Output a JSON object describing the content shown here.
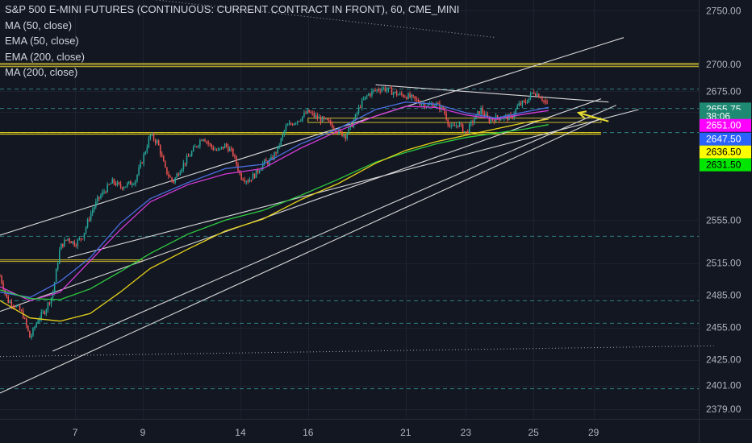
{
  "legend": {
    "title": "S&P 500 E-MINI FUTURES (CONTINUOUS: CURRENT CONTRACT IN FRONT), 60, CME_MINI",
    "lines": [
      "MA (50, close)",
      "EMA (50, close)",
      "EMA (200, close)",
      "MA (200, close)"
    ]
  },
  "colors": {
    "background": "#131722",
    "up": "#26a69a",
    "down": "#ef5350",
    "ma50": "#4a6ee0",
    "ema50": "#d23ad6",
    "ema200": "#2ecc40",
    "ma200": "#e6d21a",
    "trendline": "#d8d8d8",
    "arrow": "#e8e033",
    "dashed": "#2e7f7f"
  },
  "chart_data": {
    "type": "candlestick",
    "title": "S&P 500 E-MINI FUTURES (CONTINUOUS: CURRENT CONTRACT IN FRONT), 60, CME_MINI",
    "ylim": [
      2370,
      2760
    ],
    "y_ticks": [
      2750,
      2700,
      2675,
      2655.75,
      2555,
      2515,
      2485,
      2455,
      2425,
      2401,
      2379
    ],
    "y_tick_labels": [
      "2750.00",
      "2700.00",
      "2675.00",
      "2655.75",
      "2555.00",
      "2515.00",
      "2485.00",
      "2455.00",
      "2425.00",
      "2401.00",
      "2379.00"
    ],
    "x_ticks": [
      {
        "label": "7",
        "bar": 10
      },
      {
        "label": "9",
        "bar": 19
      },
      {
        "label": "14",
        "bar": 32
      },
      {
        "label": "16",
        "bar": 41
      },
      {
        "label": "21",
        "bar": 54
      },
      {
        "label": "23",
        "bar": 62
      },
      {
        "label": "25",
        "bar": 71
      },
      {
        "label": "29",
        "bar": 79
      }
    ],
    "x_range_bars": [
      0,
      93
    ],
    "close_path": [
      [
        0,
        2503
      ],
      [
        1,
        2480
      ],
      [
        2,
        2476
      ],
      [
        3,
        2468
      ],
      [
        4,
        2445
      ],
      [
        5,
        2462
      ],
      [
        6,
        2471
      ],
      [
        7,
        2486
      ],
      [
        8,
        2530
      ],
      [
        9,
        2538
      ],
      [
        10,
        2533
      ],
      [
        11,
        2540
      ],
      [
        12,
        2560
      ],
      [
        13,
        2574
      ],
      [
        14,
        2583
      ],
      [
        15,
        2591
      ],
      [
        16,
        2586
      ],
      [
        17,
        2588
      ],
      [
        18,
        2592
      ],
      [
        19,
        2612
      ],
      [
        20,
        2634
      ],
      [
        21,
        2627
      ],
      [
        22,
        2602
      ],
      [
        23,
        2590
      ],
      [
        24,
        2603
      ],
      [
        25,
        2613
      ],
      [
        26,
        2623
      ],
      [
        27,
        2633
      ],
      [
        28,
        2624
      ],
      [
        29,
        2619
      ],
      [
        30,
        2625
      ],
      [
        31,
        2617
      ],
      [
        32,
        2596
      ],
      [
        33,
        2592
      ],
      [
        34,
        2598
      ],
      [
        35,
        2608
      ],
      [
        36,
        2610
      ],
      [
        37,
        2622
      ],
      [
        38,
        2641
      ],
      [
        39,
        2646
      ],
      [
        40,
        2650
      ],
      [
        41,
        2656
      ],
      [
        42,
        2651
      ],
      [
        43,
        2648
      ],
      [
        44,
        2645
      ],
      [
        45,
        2637
      ],
      [
        46,
        2634
      ],
      [
        47,
        2646
      ],
      [
        48,
        2663
      ],
      [
        49,
        2672
      ],
      [
        50,
        2676
      ],
      [
        51,
        2678
      ],
      [
        52,
        2675
      ],
      [
        53,
        2672
      ],
      [
        54,
        2671
      ],
      [
        55,
        2668
      ],
      [
        56,
        2664
      ],
      [
        57,
        2662
      ],
      [
        58,
        2663
      ],
      [
        59,
        2658
      ],
      [
        60,
        2640
      ],
      [
        61,
        2645
      ],
      [
        62,
        2636
      ],
      [
        63,
        2648
      ],
      [
        64,
        2658
      ],
      [
        65,
        2648
      ],
      [
        66,
        2650
      ],
      [
        67,
        2651
      ],
      [
        68,
        2650
      ],
      [
        69,
        2662
      ],
      [
        70,
        2665
      ],
      [
        71,
        2675
      ],
      [
        72,
        2670
      ],
      [
        73,
        2660
      ]
    ],
    "series": [
      {
        "name": "MA (50, close)",
        "color": "#4a6ee0",
        "values": [
          [
            0,
            2488
          ],
          [
            4,
            2483
          ],
          [
            8,
            2498
          ],
          [
            12,
            2520
          ],
          [
            16,
            2552
          ],
          [
            20,
            2575
          ],
          [
            25,
            2590
          ],
          [
            30,
            2603
          ],
          [
            35,
            2607
          ],
          [
            40,
            2626
          ],
          [
            45,
            2640
          ],
          [
            50,
            2658
          ],
          [
            54,
            2665
          ],
          [
            58,
            2663
          ],
          [
            62,
            2655
          ],
          [
            66,
            2650
          ],
          [
            70,
            2656
          ],
          [
            73,
            2660
          ]
        ]
      },
      {
        "name": "EMA (50, close)",
        "color": "#d23ad6",
        "values": [
          [
            0,
            2493
          ],
          [
            4,
            2480
          ],
          [
            8,
            2488
          ],
          [
            12,
            2517
          ],
          [
            16,
            2546
          ],
          [
            20,
            2572
          ],
          [
            25,
            2588
          ],
          [
            30,
            2598
          ],
          [
            35,
            2603
          ],
          [
            40,
            2622
          ],
          [
            45,
            2638
          ],
          [
            50,
            2652
          ],
          [
            54,
            2661
          ],
          [
            58,
            2660
          ],
          [
            62,
            2653
          ],
          [
            66,
            2649
          ],
          [
            70,
            2654
          ],
          [
            73,
            2657
          ]
        ]
      },
      {
        "name": "EMA (200, close)",
        "color": "#2ecc40",
        "values": [
          [
            0,
            2490
          ],
          [
            4,
            2482
          ],
          [
            8,
            2481
          ],
          [
            12,
            2491
          ],
          [
            16,
            2507
          ],
          [
            20,
            2524
          ],
          [
            25,
            2542
          ],
          [
            30,
            2555
          ],
          [
            35,
            2564
          ],
          [
            40,
            2578
          ],
          [
            45,
            2593
          ],
          [
            50,
            2609
          ],
          [
            54,
            2618
          ],
          [
            58,
            2626
          ],
          [
            62,
            2632
          ],
          [
            66,
            2636
          ],
          [
            70,
            2640
          ],
          [
            73,
            2644
          ]
        ]
      },
      {
        "name": "MA (200, close)",
        "color": "#e6d21a",
        "values": [
          [
            0,
            2480
          ],
          [
            4,
            2464
          ],
          [
            8,
            2461
          ],
          [
            12,
            2468
          ],
          [
            16,
            2488
          ],
          [
            20,
            2510
          ],
          [
            25,
            2528
          ],
          [
            30,
            2545
          ],
          [
            35,
            2556
          ],
          [
            40,
            2574
          ],
          [
            45,
            2589
          ],
          [
            50,
            2608
          ],
          [
            54,
            2620
          ],
          [
            58,
            2628
          ],
          [
            62,
            2634
          ],
          [
            66,
            2640
          ],
          [
            70,
            2646
          ],
          [
            73,
            2649
          ]
        ]
      }
    ],
    "trendlines": [
      {
        "from": [
          0,
          2541
        ],
        "to": [
          83,
          2725
        ]
      },
      {
        "from": [
          0,
          2470
        ],
        "to": [
          80,
          2668
        ]
      },
      {
        "from": [
          9,
          2520
        ],
        "to": [
          85,
          2658
        ]
      },
      {
        "from": [
          7,
          2433
        ],
        "to": [
          82,
          2662
        ]
      },
      {
        "from": [
          0,
          2394
        ],
        "to": [
          80,
          2650
        ]
      },
      {
        "from": [
          50,
          2681
        ],
        "to": [
          81,
          2665
        ]
      },
      {
        "from": [
          0,
          2428
        ],
        "to": [
          95,
          2438
        ],
        "dotted": true
      },
      {
        "from": [
          8,
          2770
        ],
        "to": [
          66,
          2725
        ],
        "dotted": true
      }
    ],
    "horizontal_levels": [
      {
        "price": 2701,
        "color": "#c8b830",
        "from_bar": 0,
        "double": true
      },
      {
        "price": 2698,
        "color": "#c8b830",
        "from_bar": 0
      },
      {
        "price": 2636.5,
        "color": "#e6d21a",
        "from_bar": 0,
        "to_bar": 80,
        "double": true
      },
      {
        "price": 2518,
        "color": "#c8b830",
        "from_bar": 0,
        "to_bar": 19,
        "double": true
      }
    ],
    "zone": {
      "from_bar": 41,
      "to_bar": 80,
      "low": 2646,
      "high": 2650,
      "color": "#c8b830"
    },
    "dashed_levels": [
      2677,
      2659,
      2636.5,
      2540,
      2480,
      2459,
      2398
    ],
    "annotation_arrow": {
      "from": [
        81,
        2647
      ],
      "to": [
        77,
        2655
      ]
    },
    "price_labels": [
      {
        "text": "2655.75",
        "price": 2658.5,
        "bg": "#1f8a73",
        "fg": "#ffffff"
      },
      {
        "text": "38:06",
        "price": 2651.5,
        "bg": "#1f8a73",
        "fg": "#ffffff"
      },
      {
        "text": "2651.00",
        "price": 2643.2,
        "bg": "#ff00ff",
        "fg": "#ffffff"
      },
      {
        "text": "2647.50",
        "price": 2630.5,
        "bg": "#2962ff",
        "fg": "#ffffff"
      },
      {
        "text": "2636.50",
        "price": 2618.5,
        "bg": "#ffff00",
        "fg": "#000000"
      },
      {
        "text": "2631.50",
        "price": 2606.5,
        "bg": "#00e600",
        "fg": "#000000"
      }
    ]
  }
}
